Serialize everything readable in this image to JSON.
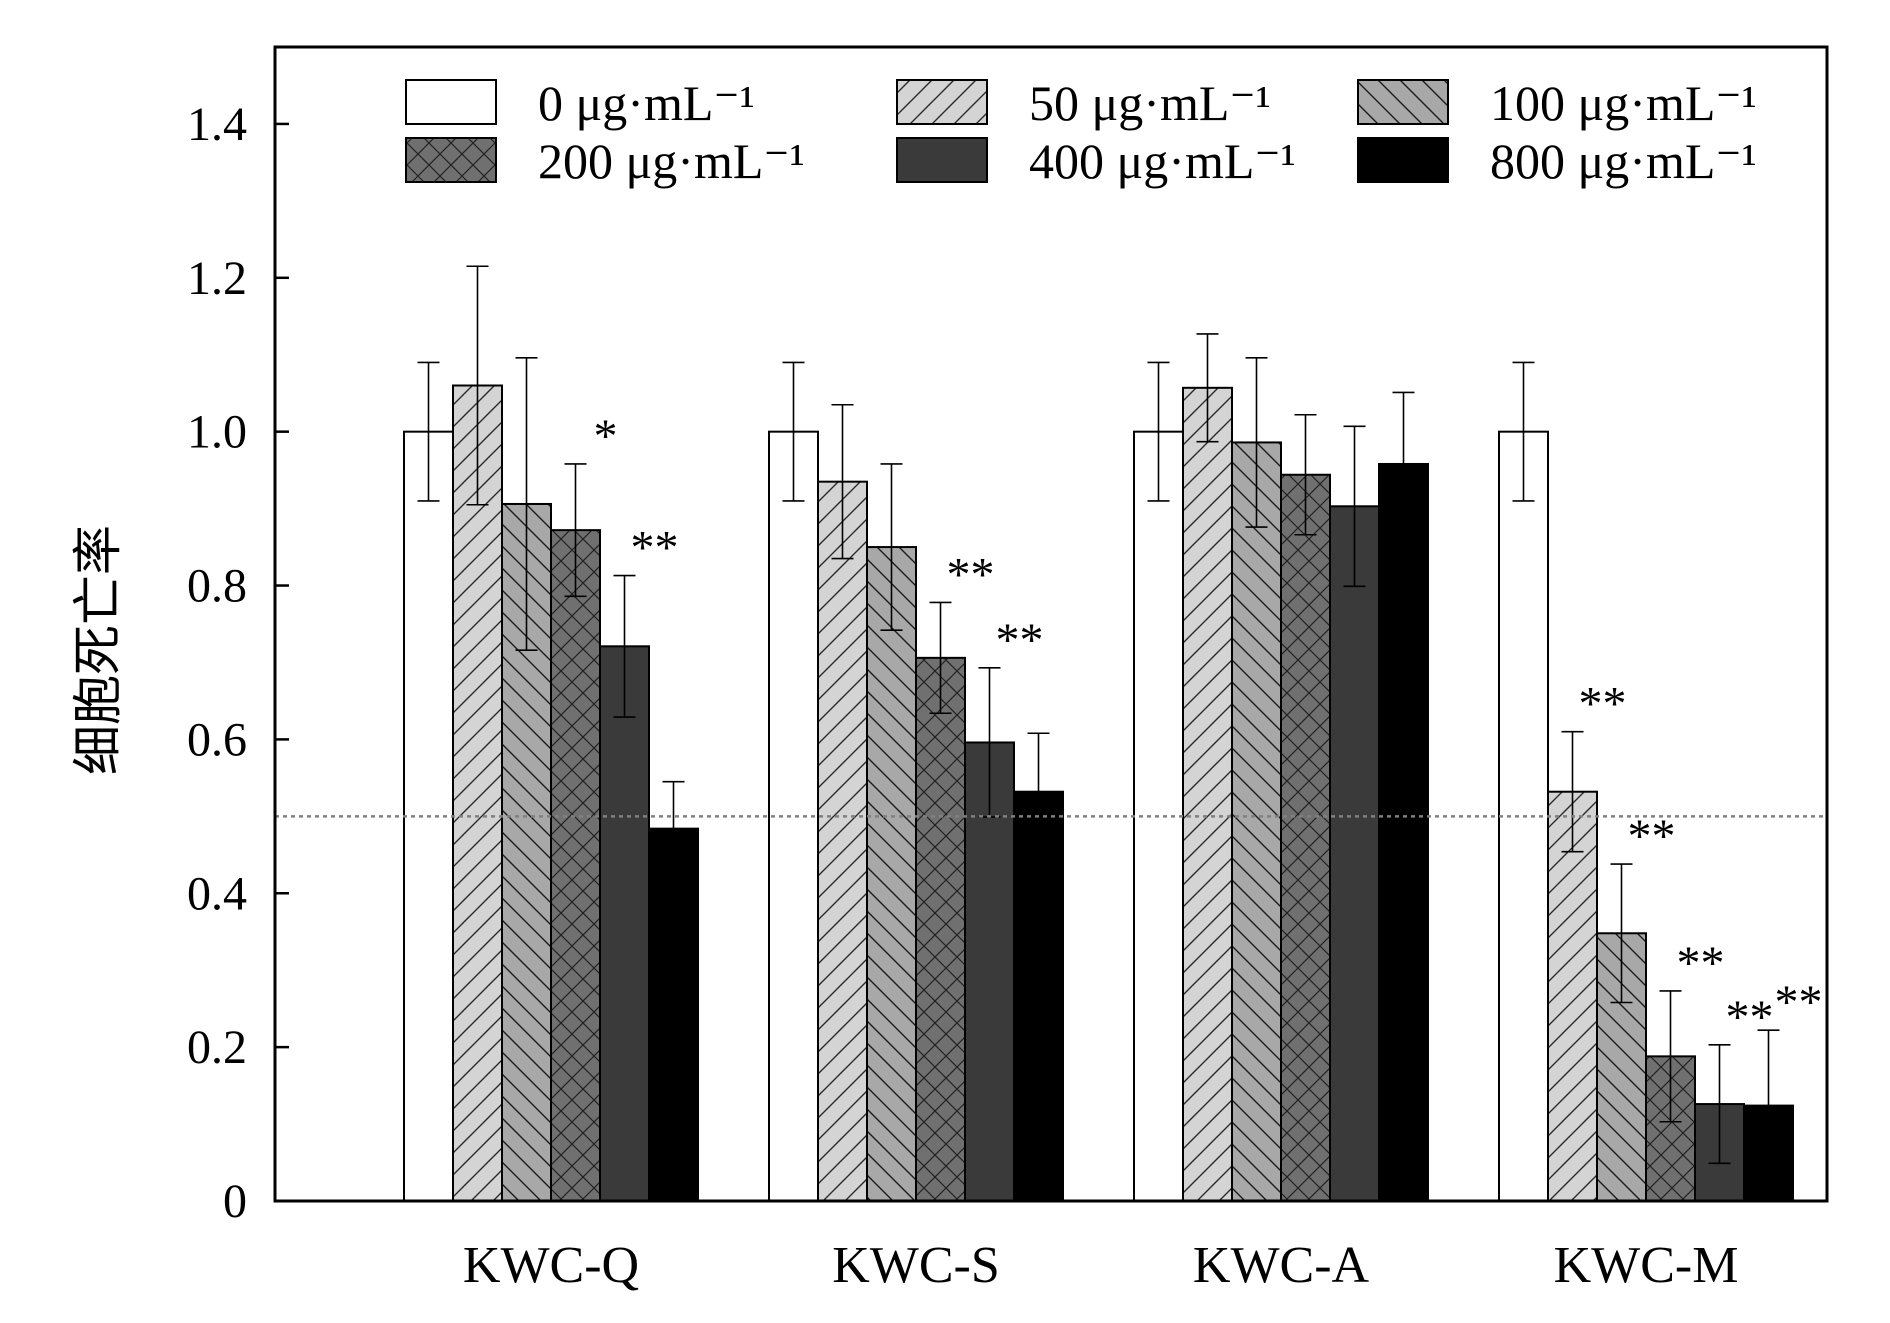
{
  "chart_data": {
    "type": "bar",
    "ylabel": "细胞死亡率",
    "xlabel": "",
    "ylim": [
      0,
      1.5
    ],
    "yticks": [
      {
        "value": 0,
        "label": "0"
      },
      {
        "value": 0.2,
        "label": "0.2"
      },
      {
        "value": 0.4,
        "label": "0.4"
      },
      {
        "value": 0.6,
        "label": "0.6"
      },
      {
        "value": 0.8,
        "label": "0.8"
      },
      {
        "value": 1.0,
        "label": "1.0"
      },
      {
        "value": 1.2,
        "label": "1.2"
      },
      {
        "value": 1.4,
        "label": "1.4"
      }
    ],
    "categories": [
      "KWC-Q",
      "KWC-S",
      "KWC-A",
      "KWC-M"
    ],
    "reference_line": 0.5,
    "legend_position": "top",
    "series": [
      {
        "name": "0 μg·mL⁻¹",
        "fill": "#ffffff",
        "pattern": "none",
        "values": [
          1.0,
          1.0,
          1.0,
          1.0
        ],
        "errors": [
          0.09,
          0.09,
          0.09,
          0.09
        ],
        "significance": [
          "",
          "",
          "",
          ""
        ]
      },
      {
        "name": "50 μg·mL⁻¹",
        "fill": "#d4d4d4",
        "pattern": "forward-diagonal",
        "values": [
          1.06,
          0.935,
          1.057,
          0.532
        ],
        "errors": [
          0.155,
          0.1,
          0.07,
          0.078
        ],
        "significance": [
          "",
          "",
          "",
          "**"
        ]
      },
      {
        "name": "100 μg·mL⁻¹",
        "fill": "#a8a8a8",
        "pattern": "back-diagonal",
        "values": [
          0.906,
          0.85,
          0.986,
          0.348
        ],
        "errors": [
          0.19,
          0.108,
          0.11,
          0.09
        ],
        "significance": [
          "",
          "",
          "",
          "**"
        ]
      },
      {
        "name": "200 μg·mL⁻¹",
        "fill": "#707070",
        "pattern": "crosshatch",
        "values": [
          0.872,
          0.706,
          0.944,
          0.188
        ],
        "errors": [
          0.086,
          0.072,
          0.078,
          0.085
        ],
        "significance": [
          "*",
          "**",
          "",
          "**"
        ]
      },
      {
        "name": "400 μg·mL⁻¹",
        "fill": "#3a3a3a",
        "pattern": "none",
        "values": [
          0.721,
          0.596,
          0.903,
          0.126
        ],
        "errors": [
          0.092,
          0.097,
          0.104,
          0.077
        ],
        "significance": [
          "**",
          "**",
          "",
          "**"
        ]
      },
      {
        "name": "800 μg·mL⁻¹",
        "fill": "#000000",
        "pattern": "none",
        "values": [
          0.484,
          0.532,
          0.958,
          0.124
        ],
        "errors": [
          0.061,
          0.076,
          0.093,
          0.098
        ],
        "significance": [
          "",
          "",
          "",
          "**"
        ]
      }
    ]
  }
}
